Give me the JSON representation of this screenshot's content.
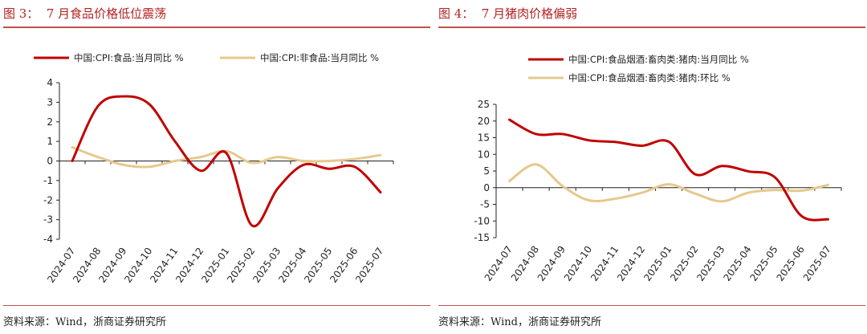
{
  "panels": [
    {
      "title": "图 3：  7 月食品价格低位震荡",
      "source": "资料来源：Wind，浙商证券研究所"
    },
    {
      "title": "图 4：  7 月猪肉价格偏弱",
      "source": "资料来源：Wind，浙商证券研究所"
    }
  ],
  "chart_data": [
    {
      "type": "line",
      "title": "7 月食品价格低位震荡",
      "categories": [
        "2024-07",
        "2024-08",
        "2024-09",
        "2024-10",
        "2024-11",
        "2024-12",
        "2025-01",
        "2025-02",
        "2025-03",
        "2025-04",
        "2025-05",
        "2025-06",
        "2025-07"
      ],
      "ylim": [
        -4,
        4
      ],
      "yticks": [
        4,
        3,
        2,
        1,
        0,
        -1,
        -2,
        -3,
        -4
      ],
      "legend_position": "top",
      "grid": false,
      "series": [
        {
          "name": "中国:CPI:食品:当月同比 %",
          "color": "#c00000",
          "values": [
            0.0,
            2.8,
            3.3,
            2.9,
            1.0,
            -0.5,
            0.4,
            -3.3,
            -1.4,
            -0.2,
            -0.4,
            -0.3,
            -1.6
          ]
        },
        {
          "name": "中国:CPI:非食品:当月同比 %",
          "color": "#e6c88c",
          "values": [
            0.7,
            0.2,
            -0.2,
            -0.3,
            0.0,
            0.2,
            0.5,
            -0.1,
            0.2,
            0.0,
            0.0,
            0.1,
            0.3
          ]
        }
      ]
    },
    {
      "type": "line",
      "title": "7 月猪肉价格偏弱",
      "categories": [
        "2024-07",
        "2024-08",
        "2024-09",
        "2024-10",
        "2024-11",
        "2024-12",
        "2025-01",
        "2025-02",
        "2025-03",
        "2025-04",
        "2025-05",
        "2025-06",
        "2025-07"
      ],
      "ylim": [
        -15,
        25
      ],
      "yticks": [
        25,
        20,
        15,
        10,
        5,
        0,
        -5,
        -10,
        -15
      ],
      "legend_position": "top",
      "grid": false,
      "series": [
        {
          "name": "中国:CPI:食品烟酒:畜肉类:猪肉:当月同比 %",
          "color": "#c00000",
          "values": [
            20.4,
            16.1,
            16.1,
            14.2,
            13.7,
            12.6,
            13.8,
            4.0,
            6.5,
            4.9,
            3.1,
            -8.5,
            -9.5
          ]
        },
        {
          "name": "中国:CPI:食品烟酒:畜肉类:猪肉:环比 %",
          "color": "#e6c88c",
          "values": [
            2.0,
            7.0,
            0.5,
            -3.8,
            -3.3,
            -1.5,
            1.0,
            -1.8,
            -4.1,
            -1.5,
            -0.7,
            -0.9,
            0.8
          ]
        }
      ]
    }
  ]
}
